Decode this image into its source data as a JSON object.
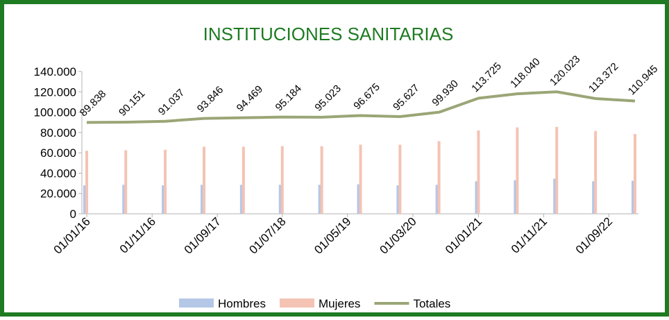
{
  "chart_data": {
    "type": "bar-line",
    "title": "INSTITUCIONES SANITARIAS",
    "x": [
      "2016-01-01",
      "2016-07-01",
      "2017-01-01",
      "2017-07-01",
      "2018-01-01",
      "2018-07-01",
      "2019-01-01",
      "2019-07-01",
      "2020-01-01",
      "2020-07-01",
      "2021-01-01",
      "2021-07-01",
      "2022-01-01",
      "2022-07-01",
      "2023-01-01"
    ],
    "xlim": [
      "2016-01-01",
      "2023-01-01"
    ],
    "xticks": [
      {
        "value": "2016-01-01",
        "label": "01/01/16"
      },
      {
        "value": "2016-11-01",
        "label": "01/11/16"
      },
      {
        "value": "2017-09-01",
        "label": "01/09/17"
      },
      {
        "value": "2018-07-01",
        "label": "01/07/18"
      },
      {
        "value": "2019-05-01",
        "label": "01/05/19"
      },
      {
        "value": "2020-03-01",
        "label": "01/03/20"
      },
      {
        "value": "2021-01-01",
        "label": "01/01/21"
      },
      {
        "value": "2021-11-01",
        "label": "01/11/21"
      },
      {
        "value": "2022-09-01",
        "label": "01/09/22"
      }
    ],
    "ylim": [
      0,
      140000
    ],
    "yticks": [
      0,
      {
        "value": 20000,
        "label": "20.000"
      },
      {
        "value": 40000,
        "label": "40.000"
      },
      {
        "value": 60000,
        "label": "60.000"
      },
      {
        "value": 80000,
        "label": "80.000"
      },
      {
        "value": 100000,
        "label": "100.000"
      },
      {
        "value": 120000,
        "label": "120.000"
      },
      {
        "value": 140000,
        "label": "140.000"
      }
    ],
    "series": [
      {
        "name": "Hombres",
        "color": "#b4c7e7",
        "kind": "bar",
        "values": [
          28000,
          28500,
          28000,
          28500,
          28500,
          28500,
          28500,
          29000,
          28000,
          28500,
          32000,
          33000,
          34500,
          32000,
          32500
        ]
      },
      {
        "name": "Mujeres",
        "color": "#f4c3b4",
        "kind": "bar",
        "values": [
          62000,
          62500,
          63000,
          66000,
          66000,
          66500,
          66500,
          68000,
          68000,
          71500,
          82000,
          85000,
          85500,
          81500,
          78500
        ]
      },
      {
        "name": "Totales",
        "color": "#9aa676",
        "kind": "line",
        "values": [
          89838,
          90151,
          91037,
          93846,
          94469,
          95184,
          95023,
          96675,
          95627,
          99930,
          113725,
          118040,
          120023,
          113372,
          110945
        ],
        "value_labels": [
          "89.838",
          "90.151",
          "91.037",
          "93.846",
          "94.469",
          "95.184",
          "95.023",
          "96.675",
          "95.627",
          "99.930",
          "113.725",
          "118.040",
          "120.023",
          "113.372",
          "110.945"
        ]
      }
    ]
  }
}
